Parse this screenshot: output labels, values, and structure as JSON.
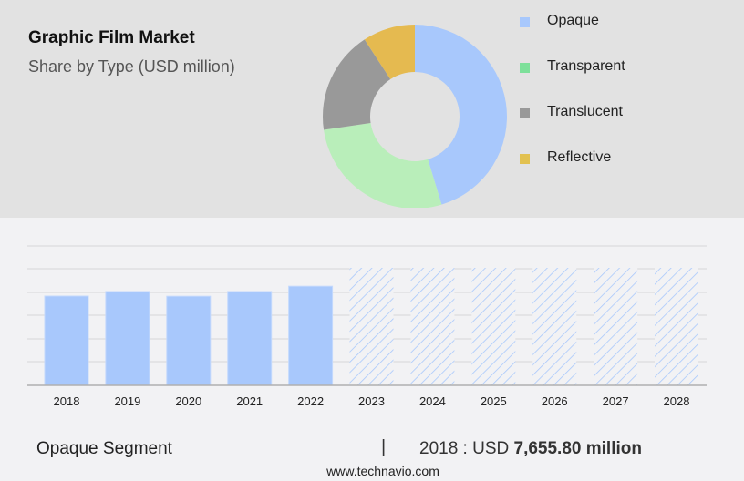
{
  "header": {
    "title": "Graphic Film Market",
    "subtitle": "Share by Type (USD million)"
  },
  "legend": [
    {
      "label": "Opaque",
      "color": "#a8c8fc"
    },
    {
      "label": "Transparent",
      "color": "#7de09a"
    },
    {
      "label": "Translucent",
      "color": "#999999"
    },
    {
      "label": "Reflective",
      "color": "#e2c150"
    }
  ],
  "footer": {
    "segment": "Opaque Segment",
    "separator": "|",
    "value_prefix": "2018 : USD",
    "value": "7,655.80 million",
    "source": "www.technavio.com"
  },
  "chart_data": [
    {
      "type": "pie",
      "variant": "donut",
      "title": "Graphic Film Market",
      "subtitle": "Share by Type (USD million)",
      "categories": [
        "Opaque",
        "Transparent",
        "Translucent",
        "Reflective"
      ],
      "values": [
        45.3,
        27.4,
        18.1,
        9.2
      ],
      "colors": [
        "#a8c8fc",
        "#b9eeba",
        "#999999",
        "#e5ba50"
      ],
      "legend_position": "right"
    },
    {
      "type": "bar",
      "title": "Opaque Segment",
      "categories": [
        "2018",
        "2019",
        "2020",
        "2021",
        "2022",
        "2023",
        "2024",
        "2025",
        "2026",
        "2027",
        "2028"
      ],
      "values": [
        7655.8,
        8050,
        7640,
        8050,
        8500,
        null,
        null,
        null,
        null,
        null,
        null
      ],
      "forecast_categories": [
        "2023",
        "2024",
        "2025",
        "2026",
        "2027",
        "2028"
      ],
      "forecast_style": "hatched",
      "xlabel": "",
      "ylabel": "USD million",
      "grid": true,
      "y_tick_labels_shown": false,
      "color": "#a8c8fc"
    }
  ]
}
